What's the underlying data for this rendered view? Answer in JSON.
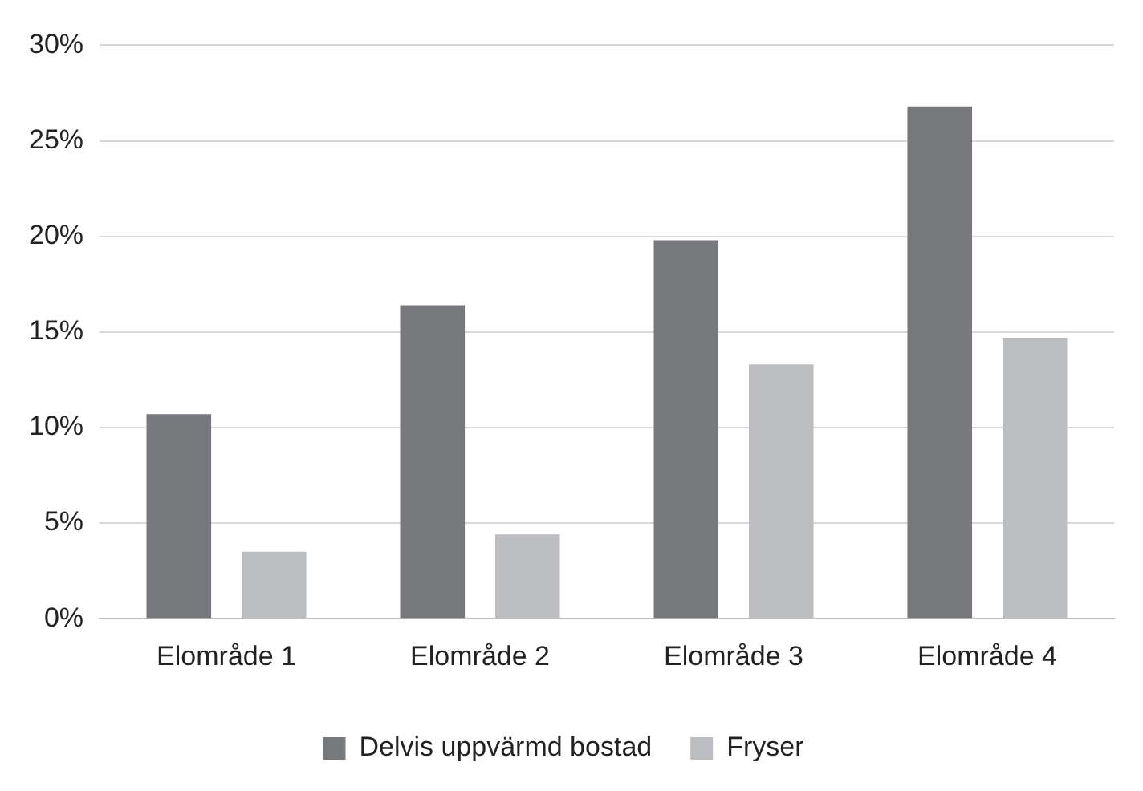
{
  "chart_data": {
    "type": "bar",
    "categories": [
      "Elområde 1",
      "Elområde 2",
      "Elområde 3",
      "Elområde 4"
    ],
    "series": [
      {
        "name": "Delvis uppvärmd bostad",
        "color": "#77787b",
        "values": [
          10.7,
          16.4,
          19.8,
          26.8
        ]
      },
      {
        "name": "Fryser",
        "color": "#bcbdc0",
        "values": [
          3.5,
          4.4,
          13.3,
          14.7
        ]
      }
    ],
    "ylim": [
      0,
      30
    ],
    "yticks": [
      {
        "value": 0,
        "label": "0%"
      },
      {
        "value": 5,
        "label": "5%"
      },
      {
        "value": 10,
        "label": "10%"
      },
      {
        "value": 15,
        "label": "15%"
      },
      {
        "value": 20,
        "label": "20%"
      },
      {
        "value": 25,
        "label": "25%"
      },
      {
        "value": 30,
        "label": "30%"
      }
    ],
    "grid": "y",
    "legend": "bottom"
  }
}
